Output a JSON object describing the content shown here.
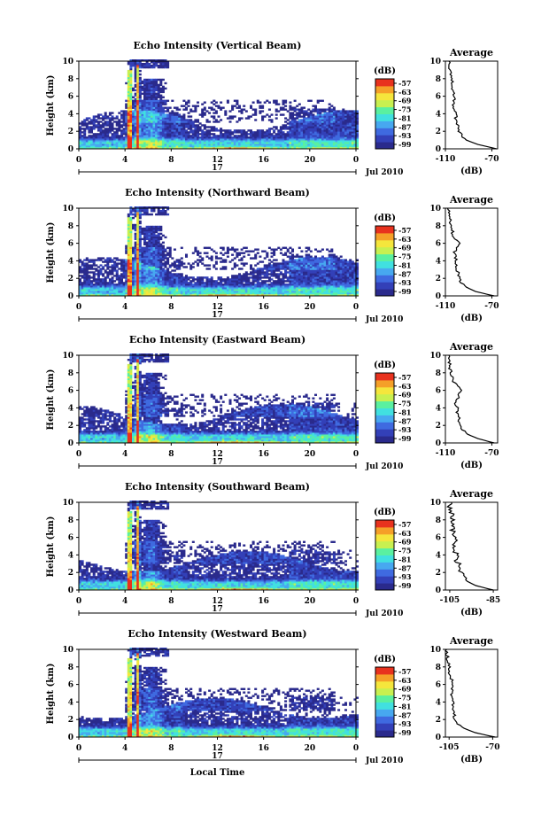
{
  "chart_data": [
    {
      "type": "heatmap",
      "title": "Echo Intensity (Vertical Beam)",
      "ylabel": "Height (km)",
      "xlabel": "",
      "x_ticks": [
        "0",
        "4",
        "8",
        "12",
        "16",
        "20",
        "0"
      ],
      "y_ticks": [
        "0",
        "2",
        "4",
        "6",
        "8",
        "10"
      ],
      "xlim": [
        0,
        24
      ],
      "ylim": [
        0,
        10
      ],
      "day_label": "17",
      "date_label": "Jul 2010",
      "colorbar": {
        "unit": "(dB)",
        "ticks": [
          "-57",
          "-63",
          "-69",
          "-75",
          "-81",
          "-87",
          "-93",
          "-99"
        ]
      },
      "profile": {
        "title": "Average",
        "xlabel": "(dB)",
        "x_ticks": [
          "-110",
          "-70"
        ],
        "xlim": [
          -110,
          -65
        ],
        "heights": [
          0,
          0.5,
          1,
          1.5,
          2,
          2.5,
          3,
          3.5,
          4,
          4.5,
          5,
          5.5,
          6,
          6.5,
          7,
          7.5,
          8,
          8.5,
          9,
          9.5,
          10
        ],
        "values": [
          -66,
          -82,
          -92,
          -96,
          -98,
          -99,
          -100,
          -101,
          -101,
          -102,
          -103,
          -103,
          -102,
          -103,
          -105,
          -104,
          -105,
          -106,
          -106,
          -107,
          -107
        ]
      }
    },
    {
      "type": "heatmap",
      "title": "Echo Intensity (Northward Beam)",
      "ylabel": "Height (km)",
      "xlabel": "",
      "x_ticks": [
        "0",
        "4",
        "8",
        "12",
        "16",
        "20",
        "0"
      ],
      "y_ticks": [
        "0",
        "2",
        "4",
        "6",
        "8",
        "10"
      ],
      "xlim": [
        0,
        24
      ],
      "ylim": [
        0,
        10
      ],
      "day_label": "17",
      "date_label": "Jul 2010",
      "colorbar": {
        "unit": "(dB)",
        "ticks": [
          "-57",
          "-63",
          "-69",
          "-75",
          "-81",
          "-87",
          "-93",
          "-99"
        ]
      },
      "profile": {
        "title": "Average",
        "xlabel": "(dB)",
        "x_ticks": [
          "-110",
          "-70"
        ],
        "xlim": [
          -110,
          -65
        ],
        "heights": [
          0,
          0.5,
          1,
          1.5,
          2,
          2.5,
          3,
          3.5,
          4,
          4.5,
          5,
          5.5,
          6,
          6.5,
          7,
          7.5,
          8,
          8.5,
          9,
          9.5,
          10
        ],
        "values": [
          -68,
          -84,
          -92,
          -96,
          -98,
          -99,
          -100,
          -101,
          -101,
          -101,
          -102,
          -101,
          -98,
          -102,
          -104,
          -104,
          -105,
          -106,
          -106,
          -107,
          -107
        ]
      }
    },
    {
      "type": "heatmap",
      "title": "Echo Intensity (Eastward Beam)",
      "ylabel": "Height (km)",
      "xlabel": "",
      "x_ticks": [
        "0",
        "4",
        "8",
        "12",
        "16",
        "20",
        "0"
      ],
      "y_ticks": [
        "0",
        "2",
        "4",
        "6",
        "8",
        "10"
      ],
      "xlim": [
        0,
        24
      ],
      "ylim": [
        0,
        10
      ],
      "day_label": "17",
      "date_label": "Jul 2010",
      "colorbar": {
        "unit": "(dB)",
        "ticks": [
          "-57",
          "-63",
          "-69",
          "-75",
          "-81",
          "-87",
          "-93",
          "-99"
        ]
      },
      "profile": {
        "title": "Average",
        "xlabel": "(dB)",
        "x_ticks": [
          "-110",
          "-70"
        ],
        "xlim": [
          -110,
          -65
        ],
        "heights": [
          0,
          0.5,
          1,
          1.5,
          2,
          2.5,
          3,
          3.5,
          4,
          4.5,
          5,
          5.5,
          6,
          6.5,
          7,
          7.5,
          8,
          8.5,
          9,
          9.5,
          10
        ],
        "values": [
          -68,
          -82,
          -91,
          -95,
          -97,
          -98,
          -99,
          -100,
          -100,
          -101,
          -100,
          -98,
          -97,
          -99,
          -103,
          -104,
          -105,
          -106,
          -106,
          -107,
          -107
        ]
      }
    },
    {
      "type": "heatmap",
      "title": "Echo Intensity (Southward Beam)",
      "ylabel": "Height (km)",
      "xlabel": "",
      "x_ticks": [
        "0",
        "4",
        "8",
        "12",
        "16",
        "20",
        "0"
      ],
      "y_ticks": [
        "0",
        "2",
        "4",
        "6",
        "8",
        "10"
      ],
      "xlim": [
        0,
        24
      ],
      "ylim": [
        0,
        10
      ],
      "day_label": "17",
      "date_label": "Jul 2010",
      "colorbar": {
        "unit": "(dB)",
        "ticks": [
          "-57",
          "-63",
          "-69",
          "-75",
          "-81",
          "-87",
          "-93",
          "-99"
        ]
      },
      "profile": {
        "title": "Average",
        "xlabel": "(dB)",
        "x_ticks": [
          "-105",
          "-85"
        ],
        "xlim": [
          -107,
          -83
        ],
        "heights": [
          0,
          0.5,
          1,
          1.5,
          2,
          2.5,
          3,
          3.5,
          4,
          4.5,
          5,
          5.5,
          6,
          6.5,
          7,
          7.5,
          8,
          8.5,
          9,
          9.5,
          10
        ],
        "values": [
          -85,
          -93,
          -97,
          -99,
          -100,
          -101,
          -101,
          -102,
          -102,
          -103,
          -103,
          -103,
          -102,
          -103,
          -104,
          -103,
          -104,
          -104,
          -104,
          -105,
          -105
        ]
      }
    },
    {
      "type": "heatmap",
      "title": "Echo Intensity (Westward Beam)",
      "ylabel": "Height (km)",
      "xlabel": "Local Time",
      "x_ticks": [
        "0",
        "4",
        "8",
        "12",
        "16",
        "20",
        "0"
      ],
      "y_ticks": [
        "0",
        "2",
        "4",
        "6",
        "8",
        "10"
      ],
      "xlim": [
        0,
        24
      ],
      "ylim": [
        0,
        10
      ],
      "day_label": "17",
      "date_label": "Jul 2010",
      "colorbar": {
        "unit": "(dB)",
        "ticks": [
          "-57",
          "-63",
          "-69",
          "-75",
          "-81",
          "-87",
          "-93",
          "-99"
        ]
      },
      "profile": {
        "title": "Average",
        "xlabel": "(dB)",
        "x_ticks": [
          "-105",
          "-70"
        ],
        "xlim": [
          -108,
          -66
        ],
        "heights": [
          0,
          0.5,
          1,
          1.5,
          2,
          2.5,
          3,
          3.5,
          4,
          4.5,
          5,
          5.5,
          6,
          6.5,
          7,
          7.5,
          8,
          8.5,
          9,
          9.5,
          10
        ],
        "values": [
          -68,
          -84,
          -93,
          -98,
          -100,
          -101,
          -101,
          -102,
          -102,
          -103,
          -103,
          -103,
          -102,
          -103,
          -105,
          -104,
          -105,
          -106,
          -106,
          -107,
          -107
        ]
      }
    }
  ],
  "colors": {
    "colormap": [
      "#2a2a8c",
      "#3340b8",
      "#3f6ae0",
      "#47a8f0",
      "#41e0e0",
      "#5af0a0",
      "#c8f050",
      "#f5e63c",
      "#f5a028",
      "#e8321e"
    ],
    "axis": "#000000",
    "background": "#ffffff"
  }
}
